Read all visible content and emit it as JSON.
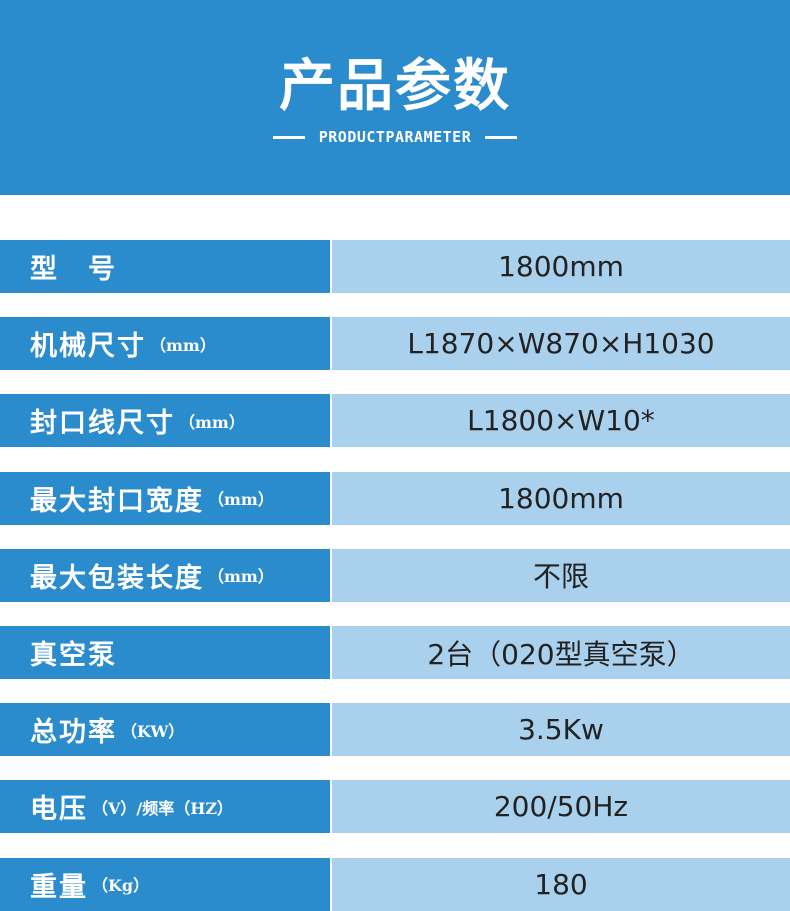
{
  "header": {
    "title": "产品参数",
    "subtitle": "PRODUCTPARAMETER"
  },
  "rows": [
    {
      "label": "型　号",
      "unit": "",
      "value": "1800mm"
    },
    {
      "label": "机械尺寸",
      "unit": "（mm）",
      "value": "L1870×W870×H1030"
    },
    {
      "label": "封口线尺寸",
      "unit": "（mm）",
      "value": "L1800×W10*"
    },
    {
      "label": "最大封口宽度",
      "unit": "（mm）",
      "value": "1800mm"
    },
    {
      "label": "最大包装长度",
      "unit": "（mm）",
      "value": "不限"
    },
    {
      "label": "真空泵",
      "unit": "",
      "value": "2台（020型真空泵）"
    },
    {
      "label": "总功率",
      "unit": "（KW）",
      "value": "3.5Kw"
    },
    {
      "label": "电压",
      "unit": "（V）/频率（HZ）",
      "value": "200/50Hz"
    },
    {
      "label": "重量",
      "unit": "（Kg）",
      "value": "180"
    }
  ]
}
